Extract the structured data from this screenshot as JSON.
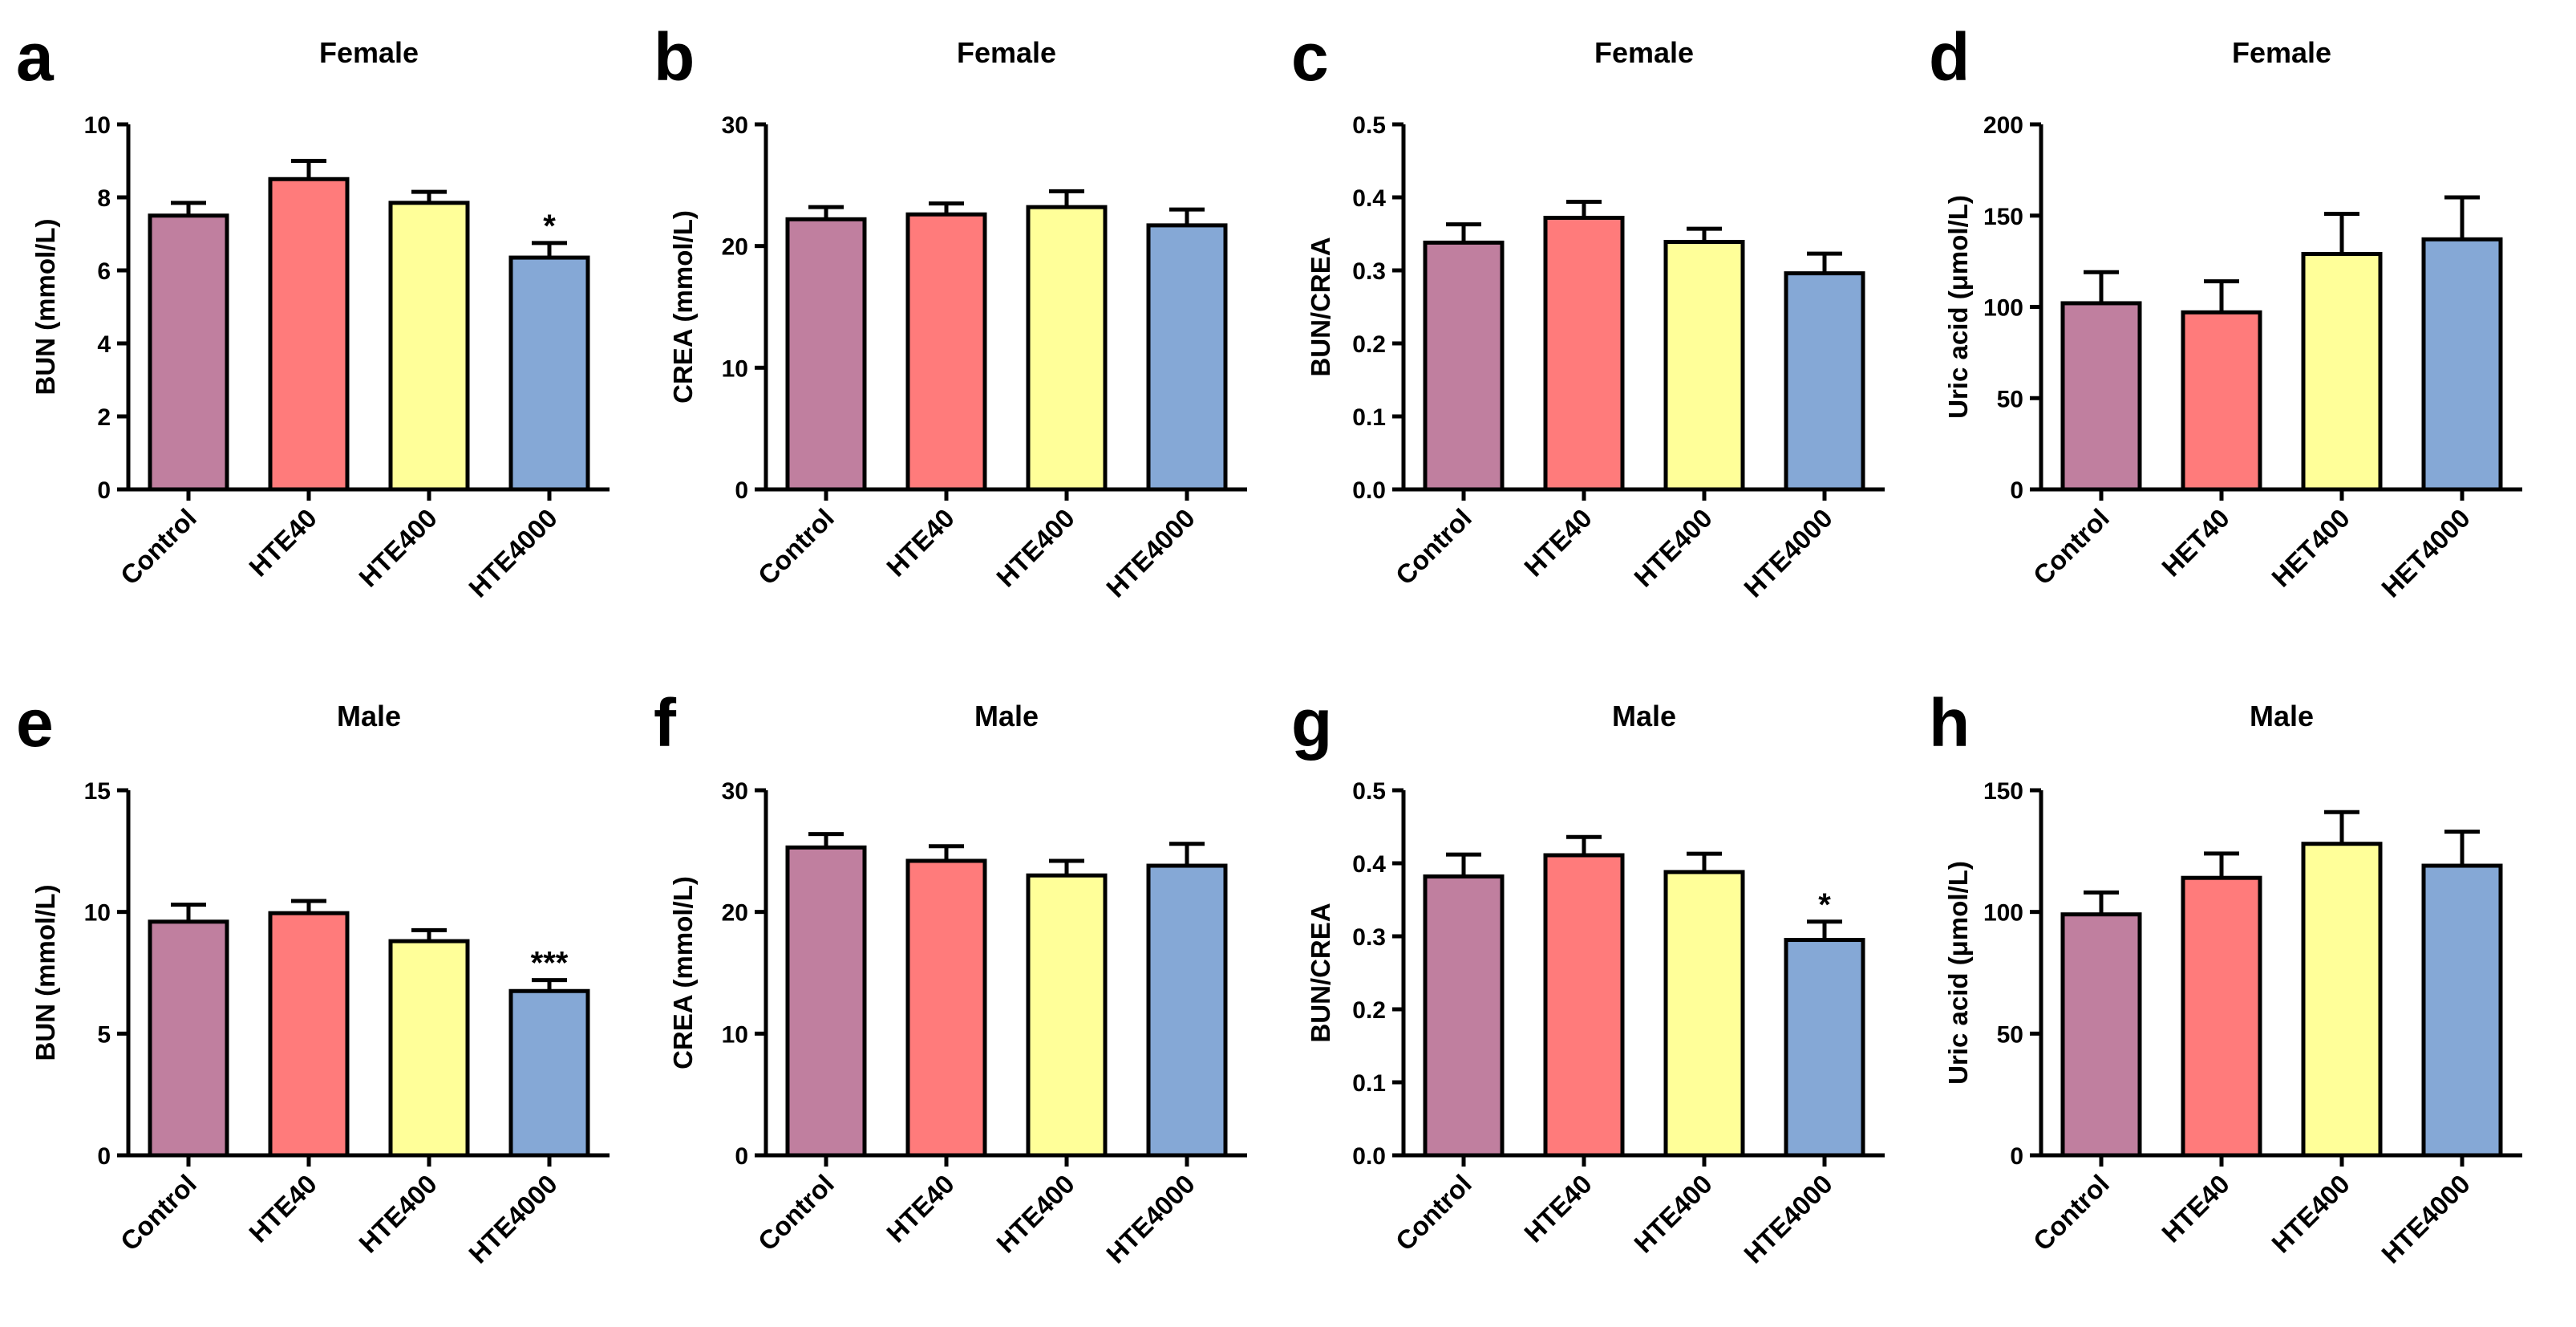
{
  "colors": {
    "Control": "#c07f9f",
    "HTE40": "#ff7b7b",
    "HTE400": "#ffff99",
    "HTE4000": "#85a8d6"
  },
  "chart_data": [
    {
      "panel": "a",
      "title": "Female",
      "type": "bar",
      "ylabel": "BUN (mmol/L)",
      "ylim": [
        0,
        10
      ],
      "yticks": [
        0,
        2,
        4,
        6,
        8,
        10
      ],
      "categories": [
        "Control",
        "HTE40",
        "HTE400",
        "HTE4000"
      ],
      "values": [
        7.5,
        8.5,
        7.85,
        6.35
      ],
      "errors": [
        0.35,
        0.5,
        0.3,
        0.4
      ],
      "significance": [
        "",
        "",
        "",
        "*"
      ]
    },
    {
      "panel": "b",
      "title": "Female",
      "type": "bar",
      "ylabel": "CREA (mmol/L)",
      "ylim": [
        0,
        30
      ],
      "yticks": [
        0,
        10,
        20,
        30
      ],
      "categories": [
        "Control",
        "HTE40",
        "HTE400",
        "HTE4000"
      ],
      "values": [
        22.2,
        22.6,
        23.2,
        21.7
      ],
      "errors": [
        1.0,
        0.9,
        1.3,
        1.3
      ],
      "significance": [
        "",
        "",
        "",
        ""
      ]
    },
    {
      "panel": "c",
      "title": "Female",
      "type": "bar",
      "ylabel": "BUN/CREA",
      "ylim": [
        0,
        0.5
      ],
      "yticks": [
        "0.0",
        "0.1",
        "0.2",
        "0.3",
        "0.4",
        "0.5"
      ],
      "categories": [
        "Control",
        "HTE40",
        "HTE400",
        "HTE4000"
      ],
      "values": [
        0.338,
        0.372,
        0.339,
        0.296
      ],
      "errors": [
        0.025,
        0.022,
        0.018,
        0.027
      ],
      "significance": [
        "",
        "",
        "",
        ""
      ]
    },
    {
      "panel": "d",
      "title": "Female",
      "type": "bar",
      "ylabel": "Uric acid (μmol/L)",
      "ylim": [
        0,
        200
      ],
      "yticks": [
        0,
        50,
        100,
        150,
        200
      ],
      "categories": [
        "Control",
        "HET40",
        "HET400",
        "HET4000"
      ],
      "values": [
        102,
        97,
        129,
        137
      ],
      "errors": [
        17,
        17,
        22,
        23
      ],
      "significance": [
        "",
        "",
        "",
        ""
      ]
    },
    {
      "panel": "e",
      "title": "Male",
      "type": "bar",
      "ylabel": "BUN (mmol/L)",
      "ylim": [
        0,
        15
      ],
      "yticks": [
        0,
        5,
        10,
        15
      ],
      "categories": [
        "Control",
        "HTE40",
        "HTE400",
        "HTE4000"
      ],
      "values": [
        9.6,
        9.95,
        8.8,
        6.75
      ],
      "errors": [
        0.7,
        0.5,
        0.45,
        0.45
      ],
      "significance": [
        "",
        "",
        "",
        "***"
      ]
    },
    {
      "panel": "f",
      "title": "Male",
      "type": "bar",
      "ylabel": "CREA (mmol/L)",
      "ylim": [
        0,
        30
      ],
      "yticks": [
        0,
        10,
        20,
        30
      ],
      "categories": [
        "Control",
        "HTE40",
        "HTE400",
        "HTE4000"
      ],
      "values": [
        25.3,
        24.2,
        23.0,
        23.8
      ],
      "errors": [
        1.1,
        1.2,
        1.2,
        1.8
      ],
      "significance": [
        "",
        "",
        "",
        ""
      ]
    },
    {
      "panel": "g",
      "title": "Male",
      "type": "bar",
      "ylabel": "BUN/CREA",
      "ylim": [
        0,
        0.5
      ],
      "yticks": [
        "0.0",
        "0.1",
        "0.2",
        "0.3",
        "0.4",
        "0.5"
      ],
      "categories": [
        "Control",
        "HTE40",
        "HTE400",
        "HTE4000"
      ],
      "values": [
        0.382,
        0.411,
        0.388,
        0.295
      ],
      "errors": [
        0.03,
        0.025,
        0.025,
        0.025
      ],
      "significance": [
        "",
        "",
        "",
        "*"
      ]
    },
    {
      "panel": "h",
      "title": "Male",
      "type": "bar",
      "ylabel": "Uric acid (μmol/L)",
      "ylim": [
        0,
        150
      ],
      "yticks": [
        0,
        50,
        100,
        150
      ],
      "categories": [
        "Control",
        "HTE40",
        "HTE400",
        "HTE4000"
      ],
      "values": [
        99,
        114,
        128,
        119
      ],
      "errors": [
        9,
        10,
        13,
        14
      ],
      "significance": [
        "",
        "",
        "",
        ""
      ]
    }
  ]
}
